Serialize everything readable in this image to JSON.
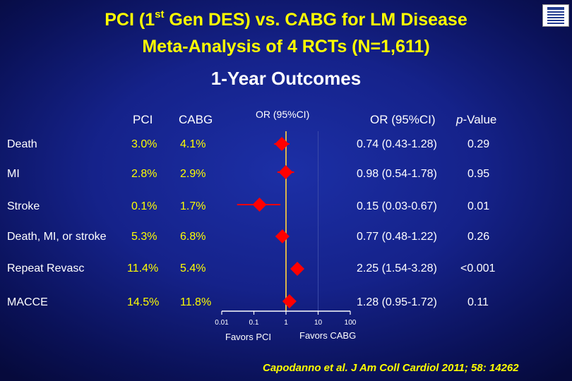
{
  "title": {
    "line1_a": "PCI (1",
    "line1_sup": "st",
    "line1_b": " Gen DES) vs. CABG for LM Disease",
    "line2": "Meta-Analysis of 4 RCTs (N=1,611)"
  },
  "subtitle": "1-Year Outcomes",
  "headers": {
    "pci": "PCI",
    "cabg": "CABG",
    "or_plot": "OR (95%CI)",
    "or_text": "OR (95%CI)",
    "p_italic": "p",
    "p_rest": "-Value"
  },
  "rows": [
    {
      "outcome": "Death",
      "pci": "3.0%",
      "cabg": "4.1%",
      "or_text": "0.74 (0.43-1.28)",
      "p": "0.29"
    },
    {
      "outcome": "MI",
      "pci": "2.8%",
      "cabg": "2.9%",
      "or_text": "0.98 (0.54-1.78)",
      "p": "0.95"
    },
    {
      "outcome": "Stroke",
      "pci": "0.1%",
      "cabg": "1.7%",
      "or_text": "0.15 (0.03-0.67)",
      "p": "0.01"
    },
    {
      "outcome": "Death, MI, or stroke",
      "pci": "5.3%",
      "cabg": "6.8%",
      "or_text": "0.77 (0.48-1.22)",
      "p": "0.26"
    },
    {
      "outcome": "Repeat Revasc",
      "pci": "11.4%",
      "cabg": "5.4%",
      "or_text": "2.25 (1.54-3.28)",
      "p": "<0.001"
    },
    {
      "outcome": "MACCE",
      "pci": "14.5%",
      "cabg": "11.8%",
      "or_text": "1.28 (0.95-1.72)",
      "p": "0.11"
    }
  ],
  "chart_data": {
    "type": "forest",
    "scale": "log",
    "xlim": [
      0.01,
      100
    ],
    "ticks": [
      {
        "value": 0.01,
        "label": "0.01"
      },
      {
        "value": 0.1,
        "label": "0.1"
      },
      {
        "value": 1,
        "label": "1"
      },
      {
        "value": 10,
        "label": "10"
      },
      {
        "value": 100,
        "label": "100"
      }
    ],
    "reference_line": 1,
    "favors_left": "Favors PCI",
    "favors_right": "Favors CABG",
    "points": [
      {
        "outcome": "Death",
        "or": 0.74,
        "low": 0.43,
        "high": 1.28
      },
      {
        "outcome": "MI",
        "or": 0.98,
        "low": 0.54,
        "high": 1.78
      },
      {
        "outcome": "Stroke",
        "or": 0.15,
        "low": 0.03,
        "high": 0.67
      },
      {
        "outcome": "Death, MI, or stroke",
        "or": 0.77,
        "low": 0.48,
        "high": 1.22
      },
      {
        "outcome": "Repeat Revasc",
        "or": 2.25,
        "low": 1.54,
        "high": 3.28
      },
      {
        "outcome": "MACCE",
        "or": 1.28,
        "low": 0.95,
        "high": 1.72
      }
    ],
    "colors": {
      "marker": "#ff0000",
      "reference": "#d9b34a",
      "axis": "#ffffff"
    }
  },
  "citation": "Capodanno et al. J Am Coll Cardiol 2011; 58: 14262"
}
